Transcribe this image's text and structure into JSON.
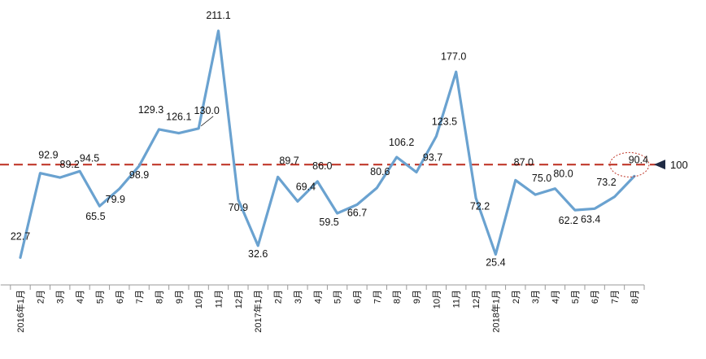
{
  "chart_data": {
    "type": "line",
    "title": "",
    "xlabel": "",
    "ylabel": "",
    "ylim": [
      0,
      230
    ],
    "grid": false,
    "legend": "none",
    "categories": [
      "2016年1月",
      "2月",
      "3月",
      "4月",
      "5月",
      "6月",
      "7月",
      "8月",
      "9月",
      "10月",
      "11月",
      "12月",
      "2017年1月",
      "2月",
      "3月",
      "4月",
      "5月",
      "6月",
      "7月",
      "8月",
      "9月",
      "10月",
      "11月",
      "12月",
      "2018年1月",
      "2月",
      "3月",
      "4月",
      "5月",
      "6月",
      "7月",
      "8月"
    ],
    "series": [
      {
        "values": [
          22.7,
          92.9,
          89.2,
          94.5,
          65.5,
          79.9,
          98.9,
          129.3,
          126.1,
          130.0,
          211.1,
          70.9,
          32.6,
          89.7,
          69.4,
          86.0,
          59.5,
          66.7,
          80.6,
          106.2,
          93.7,
          123.5,
          177.0,
          72.2,
          25.4,
          87.0,
          75.0,
          80.0,
          62.2,
          63.4,
          73.2,
          90.4
        ],
        "labels": [
          "22.7",
          "92.9",
          "89.2",
          "94.5",
          "65.5",
          "79.9",
          "98.9",
          "129.3",
          "126.1",
          "130.0",
          "211.1",
          "70.9",
          "32.6",
          "89.7",
          "69.4",
          "86.0",
          "59.5",
          "66.7",
          "80.6",
          "106.2",
          "93.7",
          "123.5",
          "177.0",
          "72.2",
          "25.4",
          "87.0",
          "75.0",
          "80.0",
          "62.2",
          "63.4",
          "73.2",
          "90.4"
        ]
      }
    ],
    "reference_line": {
      "value": 100,
      "label": "100"
    },
    "highlight_point_index": 31,
    "colors": {
      "line": "#6aa2d0",
      "reference": "#c0392b",
      "marker": "#1f2a44",
      "highlight": "#c0392b",
      "axis": "#9a9a9a"
    }
  }
}
